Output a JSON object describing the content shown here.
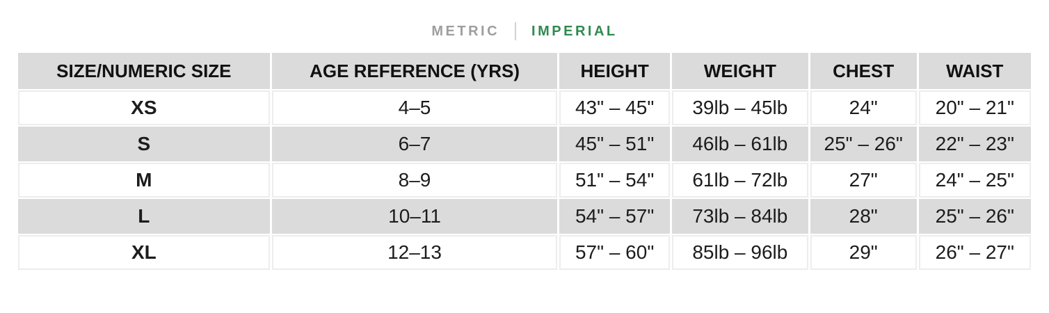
{
  "unit_toggle": {
    "metric_label": "METRIC",
    "imperial_label": "IMPERIAL",
    "selected": "IMPERIAL",
    "active_color": "#2f8a4f",
    "inactive_color": "#9e9e9e"
  },
  "table": {
    "stripe_color": "#dbdbdb",
    "columns": {
      "size": "SIZE/NUMERIC SIZE",
      "age": "AGE REFERENCE (YRS)",
      "height": "HEIGHT",
      "weight": "WEIGHT",
      "chest": "CHEST",
      "waist": "WAIST"
    },
    "rows": [
      {
        "size": "XS",
        "age": "4–5",
        "height": "43\" – 45\"",
        "weight": "39lb – 45lb",
        "chest": "24\"",
        "waist": "20\" – 21\""
      },
      {
        "size": "S",
        "age": "6–7",
        "height": "45\" – 51\"",
        "weight": "46lb – 61lb",
        "chest": "25\" – 26\"",
        "waist": "22\" – 23\""
      },
      {
        "size": "M",
        "age": "8–9",
        "height": "51\" – 54\"",
        "weight": "61lb – 72lb",
        "chest": "27\"",
        "waist": "24\" – 25\""
      },
      {
        "size": "L",
        "age": "10–11",
        "height": "54\" – 57\"",
        "weight": "73lb – 84lb",
        "chest": "28\"",
        "waist": "25\" – 26\""
      },
      {
        "size": "XL",
        "age": "12–13",
        "height": "57\" – 60\"",
        "weight": "85lb – 96lb",
        "chest": "29\"",
        "waist": "26\" – 27\""
      }
    ]
  }
}
